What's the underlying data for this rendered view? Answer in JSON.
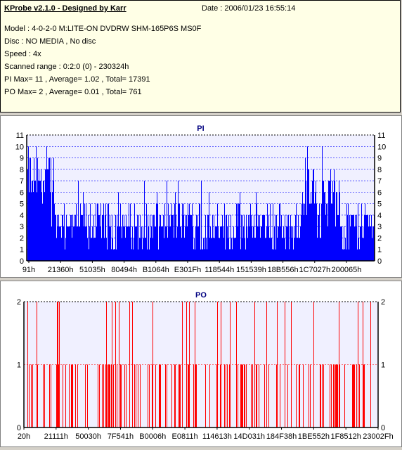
{
  "header": {
    "app_title": "KProbe v2.1.0 - Designed by Karr",
    "date": "Date : 2006/01/23 16:55:14",
    "model": "Model : 4-0-2-0 M:LITE-ON DVDRW SHM-165P6S MS0F",
    "disc": "Disc : NO MEDIA , No disc",
    "speed": "Speed : 4x",
    "scanned_range": "Scanned range : 0:2:0 (0) - 230324h",
    "pi_summary": "PI Max= 11 , Average= 1.02 , Total= 17391",
    "po_summary": "PO Max= 2 , Average= 0.01 , Total= 761"
  },
  "chart_data": [
    {
      "type": "bar",
      "title": "PI",
      "ylim": [
        0,
        11
      ],
      "y_ticks": [
        "0",
        "1",
        "2",
        "3",
        "4",
        "5",
        "6",
        "7",
        "8",
        "9",
        "10",
        "11"
      ],
      "x_tick_labels": [
        "91h",
        "21360h",
        "51035h",
        "80494h",
        "B1064h",
        "E301Fh",
        "118544h",
        "151539h",
        "18B556h",
        "1C7027h",
        "200065h"
      ],
      "color": "#0000ff",
      "grid": true,
      "max": 11,
      "average": 1.02,
      "total": 17391
    },
    {
      "type": "bar",
      "title": "PO",
      "ylim": [
        0,
        2
      ],
      "y_ticks": [
        "0",
        "1",
        "2"
      ],
      "x_tick_labels": [
        "20h",
        "21111h",
        "50030h",
        "7F541h",
        "B0006h",
        "E0811h",
        "114613h",
        "14D031h",
        "184F38h",
        "1BE552h",
        "1F8512h",
        "23002Fh"
      ],
      "color": "#ff0000",
      "grid": true,
      "max": 2,
      "average": 0.01,
      "total": 761
    }
  ]
}
